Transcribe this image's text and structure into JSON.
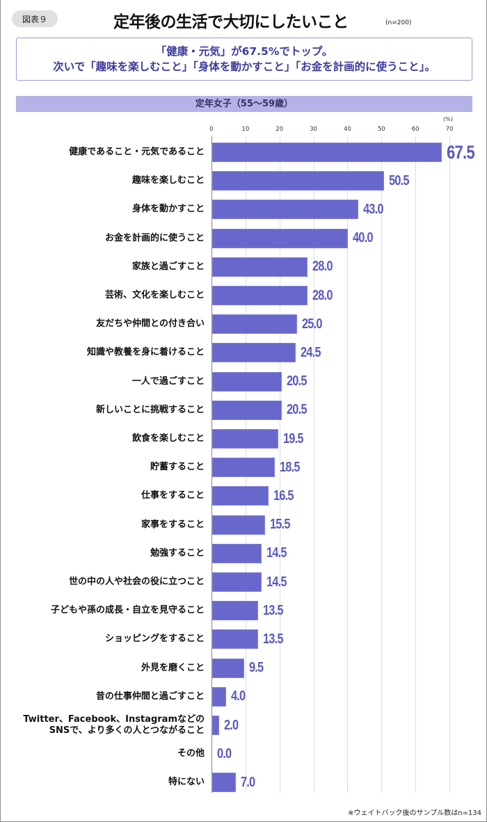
{
  "header": {
    "badge": "図表９",
    "title": "定年後の生活で大切にしたいこと",
    "sample": "(n=200)"
  },
  "summary": {
    "line1": "「健康・元気」が67.5%でトップ。",
    "line2": "次いで「趣味を楽しむこと」「身体を動かすこと」「お金を計画的に使うこと」。"
  },
  "group_label": "定年女子（55〜59歳）",
  "footnote": "※ウェイトバック後のサンプル数はn=134",
  "colors": {
    "bar": "#6767cc",
    "value_text": "#5a5ac0",
    "group_band": "#b4b2e6",
    "summary_text": "#3b3b9c"
  },
  "chart_data": {
    "type": "bar",
    "orientation": "horizontal",
    "title": "定年後の生活で大切にしたいこと",
    "subtitle": "定年女子（55〜59歳）",
    "xlabel": "(%)",
    "ylabel": "",
    "xlim": [
      0,
      70
    ],
    "ticks": [
      "0",
      "10",
      "20",
      "30",
      "40",
      "50",
      "60",
      "70"
    ],
    "grid": true,
    "categories": [
      "健康であること・元気であること",
      "趣味を楽しむこと",
      "身体を動かすこと",
      "お金を計画的に使うこと",
      "家族と過ごすこと",
      "芸術、文化を楽しむこと",
      "友だちや仲間との付き合い",
      "知識や教養を身に着けること",
      "一人で過ごすこと",
      "新しいことに挑戦すること",
      "飲食を楽しむこと",
      "貯蓄すること",
      "仕事をすること",
      "家事をすること",
      "勉強すること",
      "世の中の人や社会の役に立つこと",
      "子どもや孫の成長・自立を見守ること",
      "ショッピングをすること",
      "外見を磨くこと",
      "昔の仕事仲間と過ごすこと",
      "Twitter、Facebook、Instagramなどの\nSNSで、より多くの人とつながること",
      "その他",
      "特にない"
    ],
    "values": [
      67.5,
      50.5,
      43.0,
      40.0,
      28.0,
      28.0,
      25.0,
      24.5,
      20.5,
      20.5,
      19.5,
      18.5,
      16.5,
      15.5,
      14.5,
      14.5,
      13.5,
      13.5,
      9.5,
      4.0,
      2.0,
      0.0,
      7.0
    ],
    "value_labels": [
      "67.5",
      "50.5",
      "43.0",
      "40.0",
      "28.0",
      "28.0",
      "25.0",
      "24.5",
      "20.5",
      "20.5",
      "19.5",
      "18.5",
      "16.5",
      "15.5",
      "14.5",
      "14.5",
      "13.5",
      "13.5",
      "9.5",
      "4.0",
      "2.0",
      "0.0",
      "7.0"
    ]
  }
}
